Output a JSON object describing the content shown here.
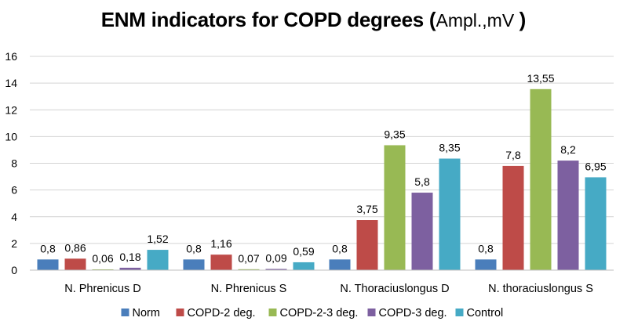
{
  "chart_data": {
    "type": "bar",
    "title_main": "ENM indicators for COPD degrees ",
    "title_open": "(",
    "title_unit": "Ampl.,mV ",
    "title_close": ")",
    "categories": [
      "N. Phrenicus D",
      "N. Phrenicus S",
      "N. Thoraciuslongus D",
      "N. thoraciuslongus S"
    ],
    "ylim": [
      0,
      16
    ],
    "yticks": [
      "0",
      "2",
      "4",
      "6",
      "8",
      "10",
      "12",
      "14",
      "16"
    ],
    "grid": true,
    "legend_position": "bottom",
    "series": [
      {
        "name": "Norm",
        "color": "#4a7ebb",
        "values": [
          0.8,
          0.8,
          0.8,
          0.8
        ],
        "labels": [
          "0,8",
          "0,8",
          "0,8",
          "0,8"
        ]
      },
      {
        "name": "COPD-2 deg.",
        "color": "#be4b48",
        "values": [
          0.86,
          1.16,
          3.75,
          7.8
        ],
        "labels": [
          "0,86",
          "1,16",
          "3,75",
          "7,8"
        ]
      },
      {
        "name": "COPD-2-3 deg.",
        "color": "#98b954",
        "values": [
          0.06,
          0.07,
          9.35,
          13.55
        ],
        "labels": [
          "0,06",
          "0,07",
          "9,35",
          "13,55"
        ]
      },
      {
        "name": "COPD-3 deg.",
        "color": "#7d60a0",
        "values": [
          0.18,
          0.09,
          5.8,
          8.2
        ],
        "labels": [
          "0,18",
          "0,09",
          "5,8",
          "8,2"
        ]
      },
      {
        "name": "Control",
        "color": "#46aac5",
        "values": [
          1.52,
          0.59,
          8.35,
          6.95
        ],
        "labels": [
          "1,52",
          "0,59",
          "8,35",
          "6,95"
        ]
      }
    ]
  }
}
